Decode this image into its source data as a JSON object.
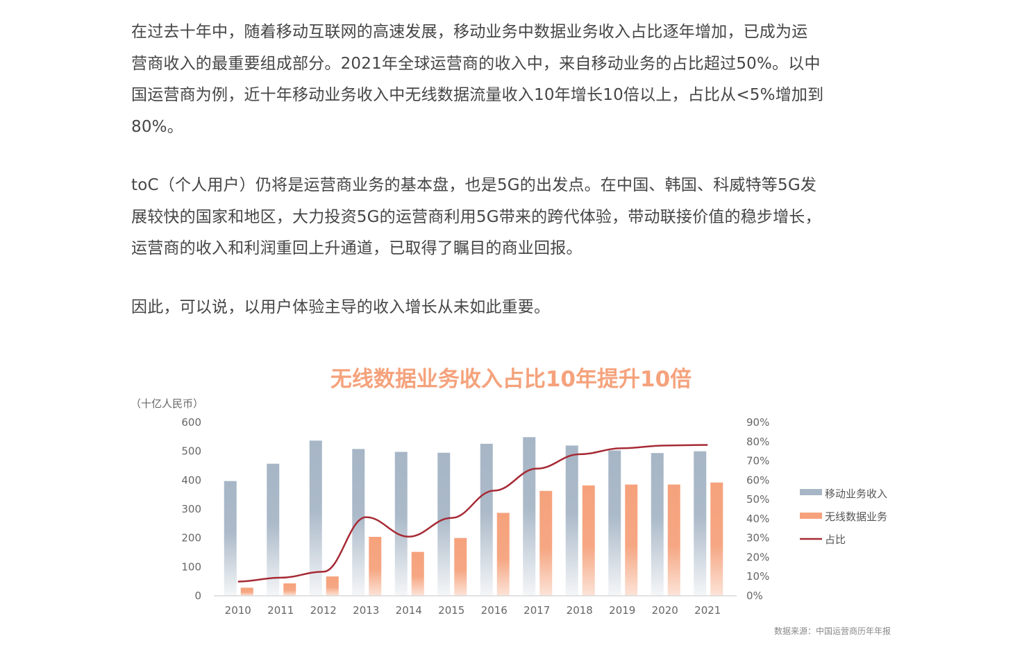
{
  "article": {
    "paragraphs": [
      "在过去十年中，随着移动互联网的高速发展，移动业务中数据业务收入占比逐年增加，已成为运\n营商收入的最重要组成部分。2021年全球运营商的收入中，来自移动业务的占比超过50%。以中\n国运营商为例，近十年移动业务收入中无线数据流量收入10年增长10倍以上，占比从<5%增加到\n80%。",
      "toC（个人用户）仍将是运营商业务的基本盘，也是5G的出发点。在中国、韩国、科威特等5G发\n展较快的国家和地区，大力投资5G的运营商利用5G带来的跨代体验，带动联接价值的稳步增长，\n运营商的收入和利润重回上升通道，已取得了瞩目的商业回报。",
      "因此，可以说，以用户体验主导的收入增长从未如此重要。"
    ]
  },
  "chart_data": {
    "type": "bar",
    "title": "无线数据业务收入占比10年提升10倍",
    "y_unit_label": "（十亿人民币）",
    "categories": [
      "2010",
      "2011",
      "2012",
      "2013",
      "2014",
      "2015",
      "2016",
      "2017",
      "2018",
      "2019",
      "2020",
      "2021"
    ],
    "series": [
      {
        "name": "移动业务收入",
        "kind": "bar",
        "axis": "left",
        "color": "#a7b6c6",
        "values": [
          397,
          457,
          537,
          508,
          498,
          495,
          526,
          549,
          520,
          503,
          494,
          500
        ]
      },
      {
        "name": "无线数据业务",
        "kind": "bar",
        "axis": "left",
        "color": "#f5a27c",
        "values": [
          28,
          43,
          67,
          204,
          152,
          200,
          287,
          363,
          382,
          385,
          385,
          392
        ]
      },
      {
        "name": "占比",
        "kind": "line",
        "axis": "right",
        "color": "#a62a35",
        "values": [
          7.4,
          9.4,
          12.5,
          40.8,
          30.7,
          40.4,
          54.6,
          66.0,
          73.5,
          76.6,
          78.0,
          78.3
        ]
      }
    ],
    "ylim_left": [
      0,
      600
    ],
    "yticks_left": [
      "0",
      "100",
      "200",
      "300",
      "400",
      "500",
      "600"
    ],
    "ylim_right": [
      0,
      90
    ],
    "yticks_right": [
      "0%",
      "10%",
      "20%",
      "30%",
      "40%",
      "50%",
      "60%",
      "70%",
      "80%",
      "90%"
    ],
    "legend_position": "right",
    "grid": false,
    "source_note": "数据来源：中国运营商历年年报"
  },
  "colors": {
    "title": "#f5a27c",
    "mobile_bar": "#a7b6c6",
    "data_bar": "#f5a27c",
    "ratio_line": "#a62a35",
    "axis_text": "#666666",
    "baseline": "#d9d9d9"
  }
}
